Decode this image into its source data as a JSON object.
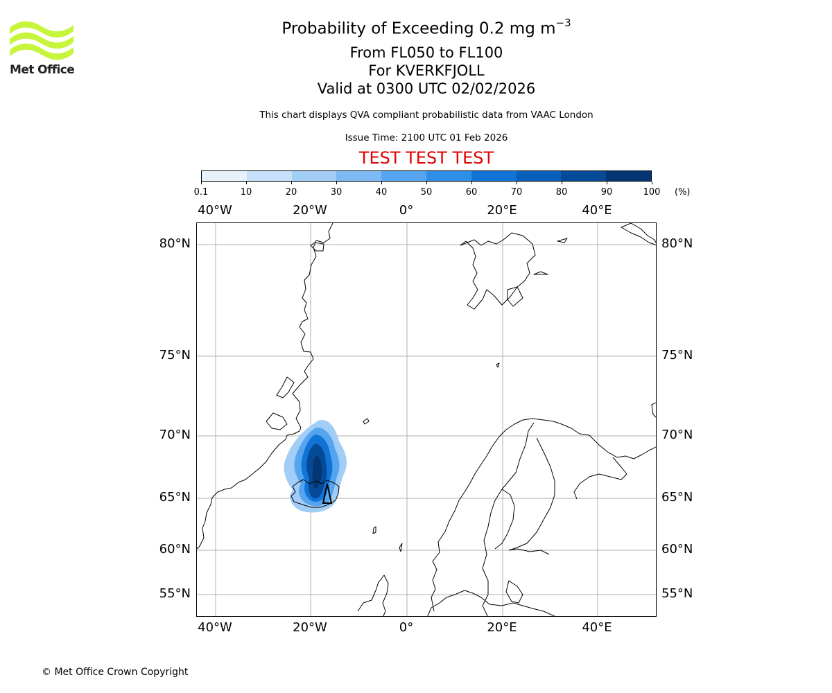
{
  "brand": {
    "name": "Met Office",
    "logo_color": "#c6f53b"
  },
  "header": {
    "title_main": "Probability of Exceeding 0.2 mg m",
    "title_exponent": "−3",
    "level_range": "From FL050 to FL100",
    "volcano": "For KVERKFJOLL",
    "valid_time": "Valid at 0300 UTC 02/02/2026",
    "disclaimer": "This chart displays QVA compliant probabilistic data from VAAC London",
    "issue_time": "Issue Time: 2100 UTC 01 Feb 2026",
    "test_banner": "TEST TEST TEST",
    "test_color": "#e00000"
  },
  "colorbar": {
    "unit": "(%)",
    "ticks": [
      "0.1",
      "10",
      "20",
      "30",
      "40",
      "50",
      "60",
      "70",
      "80",
      "90",
      "100"
    ],
    "colors": [
      "#e8f2fc",
      "#c5e0f9",
      "#a2cdf6",
      "#7dbaf3",
      "#54a4ef",
      "#2f8ee8",
      "#1173d6",
      "#075fba",
      "#054a97",
      "#033673"
    ]
  },
  "map": {
    "lon_labels": [
      "40°W",
      "20°W",
      "0°",
      "20°E",
      "40°E"
    ],
    "lat_labels": [
      "80°N",
      "75°N",
      "70°N",
      "65°N",
      "60°N",
      "55°N"
    ],
    "volcano_marker": "triangle",
    "plume_probability_peak_pct": 90
  },
  "footer": {
    "copyright": "© Met Office Crown Copyright"
  }
}
